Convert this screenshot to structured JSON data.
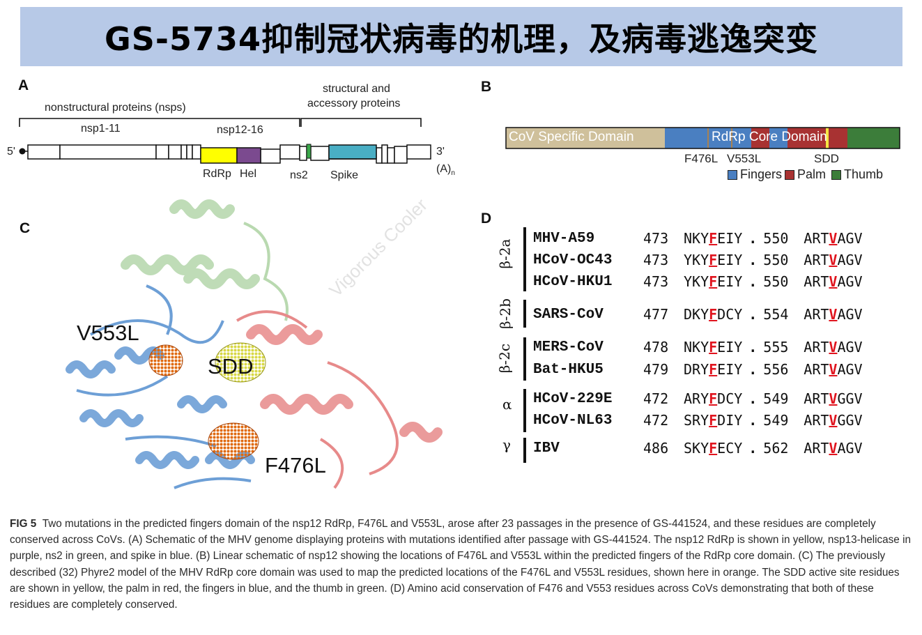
{
  "title": "GS-5734抑制冠状病毒的机理，及病毒逃逸突变",
  "panel_a": {
    "letter": "A",
    "nsps_label": "nonstructural proteins (nsps)",
    "structural_label_line1": "structural and",
    "structural_label_line2": "accessory proteins",
    "nsp1_11": "nsp1-11",
    "nsp12_16": "nsp12-16",
    "five_prime": "5'",
    "three_prime": "3'",
    "polya": "(A)",
    "polya_sub": "n",
    "rdrp": "RdRp",
    "hel": "Hel",
    "ns2": "ns2",
    "spike": "Spike",
    "colors": {
      "rdrp": "#ffff00",
      "hel": "#7b4a8f",
      "ns2": "#3aa84a",
      "spike": "#49aec4"
    }
  },
  "panel_b": {
    "letter": "B",
    "cov_specific": "CoV Specific Domain",
    "rdrp_core": "RdRp Core Domain",
    "f476l": "F476L",
    "v553l": "V553L",
    "sdd": "SDD",
    "legend": [
      {
        "label": "Fingers",
        "color": "#4a7fc1"
      },
      {
        "label": "Palm",
        "color": "#a83232"
      },
      {
        "label": "Thumb",
        "color": "#3c7d3a"
      }
    ],
    "colors": {
      "cov_specific": "#cfc09b",
      "fingers": "#4a7fc1",
      "palm": "#a83232",
      "thumb": "#3c7d3a",
      "sdd": "#f5e642"
    }
  },
  "panel_c": {
    "letter": "C",
    "v553l": "V553L",
    "sdd": "SDD",
    "f476l": "F476L",
    "watermark": "Vigorous Cooler"
  },
  "panel_d": {
    "letter": "D",
    "groups": [
      {
        "label": "β-2a"
      },
      {
        "label": "β-2b"
      },
      {
        "label": "β-2c"
      },
      {
        "label": "α"
      },
      {
        "label": "γ"
      }
    ],
    "rows": [
      {
        "name": "MHV-A59",
        "n1": "473",
        "s1a": "NKY",
        "s1r": "F",
        "s1b": "EIY",
        "n2": "550",
        "s2a": "ART",
        "s2r": "V",
        "s2b": "AGV"
      },
      {
        "name": "HCoV-OC43",
        "n1": "473",
        "s1a": "YKY",
        "s1r": "F",
        "s1b": "EIY",
        "n2": "550",
        "s2a": "ART",
        "s2r": "V",
        "s2b": "AGV"
      },
      {
        "name": "HCoV-HKU1",
        "n1": "473",
        "s1a": "YKY",
        "s1r": "F",
        "s1b": "EIY",
        "n2": "550",
        "s2a": "ART",
        "s2r": "V",
        "s2b": "AGV"
      },
      {
        "name": "SARS-CoV",
        "n1": "477",
        "s1a": "DKY",
        "s1r": "F",
        "s1b": "DCY",
        "n2": "554",
        "s2a": "ART",
        "s2r": "V",
        "s2b": "AGV"
      },
      {
        "name": "MERS-CoV",
        "n1": "478",
        "s1a": "NKY",
        "s1r": "F",
        "s1b": "EIY",
        "n2": "555",
        "s2a": "ART",
        "s2r": "V",
        "s2b": "AGV"
      },
      {
        "name": "Bat-HKU5",
        "n1": "479",
        "s1a": "DRY",
        "s1r": "F",
        "s1b": "EIY",
        "n2": "556",
        "s2a": "ART",
        "s2r": "V",
        "s2b": "AGV"
      },
      {
        "name": "HCoV-229E",
        "n1": "472",
        "s1a": "ARY",
        "s1r": "F",
        "s1b": "DCY",
        "n2": "549",
        "s2a": "ART",
        "s2r": "V",
        "s2b": "GGV"
      },
      {
        "name": "HCoV-NL63",
        "n1": "472",
        "s1a": "SRY",
        "s1r": "F",
        "s1b": "DIY",
        "n2": "549",
        "s2a": "ART",
        "s2r": "V",
        "s2b": "GGV"
      },
      {
        "name": "IBV",
        "n1": "486",
        "s1a": "SKY",
        "s1r": "F",
        "s1b": "ECY",
        "n2": "562",
        "s2a": "ART",
        "s2r": "V",
        "s2b": "AGV"
      }
    ]
  },
  "caption": {
    "fig": "FIG 5",
    "text": "Two mutations in the predicted fingers domain of the nsp12 RdRp, F476L and V553L, arose after 23 passages in the presence of GS-441524, and these residues are completely conserved across CoVs. (A) Schematic of the MHV genome displaying proteins with mutations identified after passage with GS-441524. The nsp12 RdRp is shown in yellow, nsp13-helicase in purple, ns2 in green, and spike in blue. (B) Linear schematic of nsp12 showing the locations of F476L and V553L within the predicted fingers of the RdRp core domain. (C) The previously described (32) Phyre2 model of the MHV RdRp core domain was used to map the predicted locations of the F476L and V553L residues, shown here in orange. The SDD active site residues are shown in yellow, the palm in red, the fingers in blue, and the thumb in green. (D) Amino acid conservation of F476 and V553 residues across CoVs demonstrating that both of these residues are completely conserved."
  }
}
